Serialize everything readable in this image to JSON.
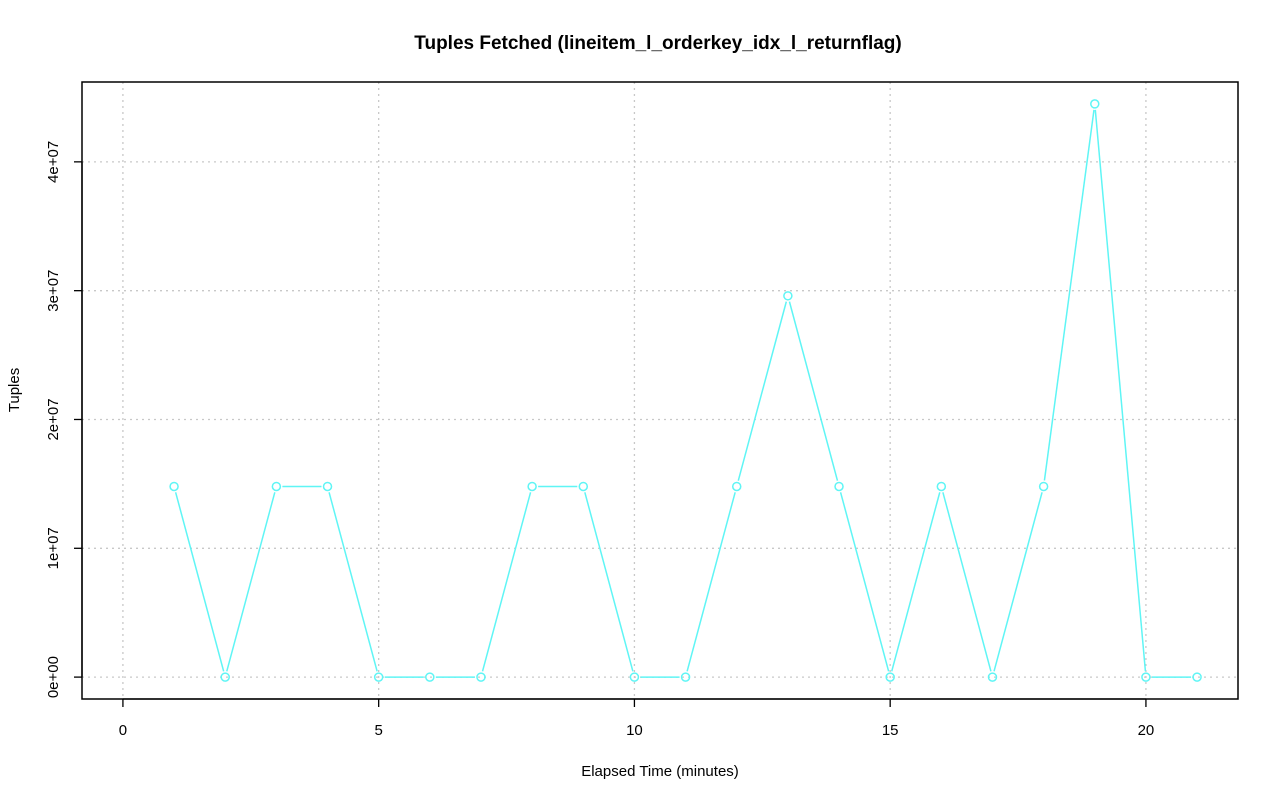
{
  "chart_data": {
    "type": "line",
    "title": "Tuples Fetched (lineitem_l_orderkey_idx_l_returnflag)",
    "xlabel": "Elapsed Time (minutes)",
    "ylabel": "Tuples",
    "xlim": [
      -0.8,
      21.8
    ],
    "ylim": [
      -1700000,
      46200000
    ],
    "x_ticks": [
      0,
      5,
      10,
      15,
      20
    ],
    "x_tick_labels": [
      "0",
      "5",
      "10",
      "15",
      "20"
    ],
    "y_ticks": [
      0,
      10000000,
      20000000,
      30000000,
      40000000
    ],
    "y_tick_labels": [
      "0e+00",
      "1e+07",
      "2e+07",
      "3e+07",
      "4e+07"
    ],
    "grid": true,
    "series": [
      {
        "color": "#5ff5f5",
        "x": [
          1,
          2,
          3,
          4,
          5,
          6,
          7,
          8,
          9,
          10,
          11,
          12,
          13,
          14,
          15,
          16,
          17,
          18,
          19,
          20,
          21
        ],
        "y": [
          14800000,
          0,
          14800000,
          14800000,
          0,
          0,
          0,
          14800000,
          14800000,
          0,
          0,
          14800000,
          29600000,
          14800000,
          0,
          14800000,
          0,
          14800000,
          44500000,
          0,
          0
        ]
      }
    ]
  }
}
